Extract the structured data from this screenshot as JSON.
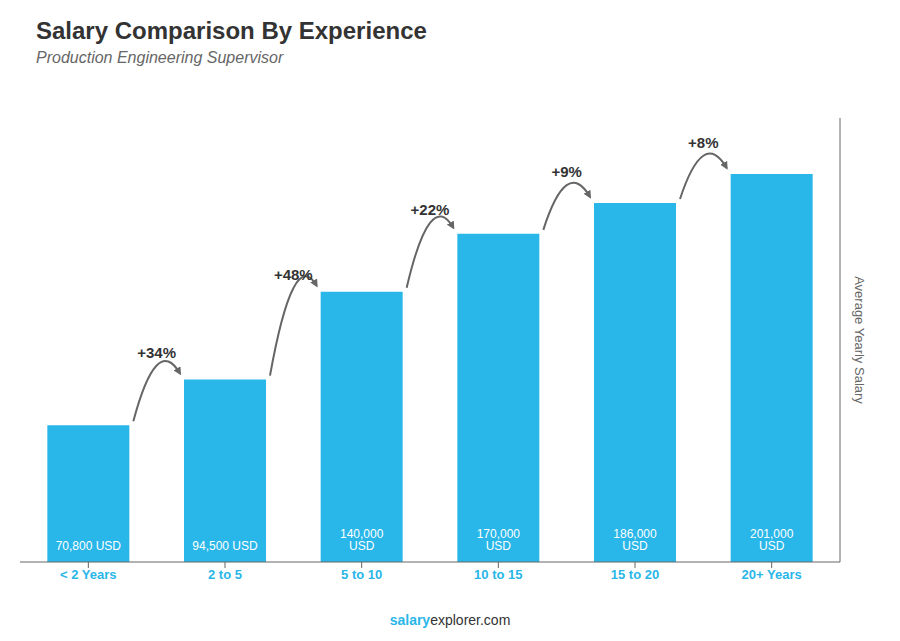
{
  "chart_data": {
    "type": "bar",
    "title": "Salary Comparison By Experience",
    "subtitle": "Production Engineering Supervisor",
    "categories": [
      "< 2 Years",
      "2 to 5",
      "5 to 10",
      "10 to 15",
      "15 to 20",
      "20+ Years"
    ],
    "values": [
      70800,
      94500,
      140000,
      170000,
      186000,
      201000
    ],
    "value_labels": [
      "70,800 USD",
      "94,500 USD",
      "140,000 USD",
      "170,000 USD",
      "186,000 USD",
      "201,000 USD"
    ],
    "data_labels": true,
    "color": "#29b6e8",
    "ylabel": "Average Yearly Salary",
    "ylim": [
      0,
      230000
    ],
    "tick_labels": "x",
    "grid": false,
    "annotations": [
      "+34%",
      "+48%",
      "+22%",
      "+9%",
      "+8%"
    ],
    "footer": [
      "salary",
      "explorer.com"
    ]
  }
}
